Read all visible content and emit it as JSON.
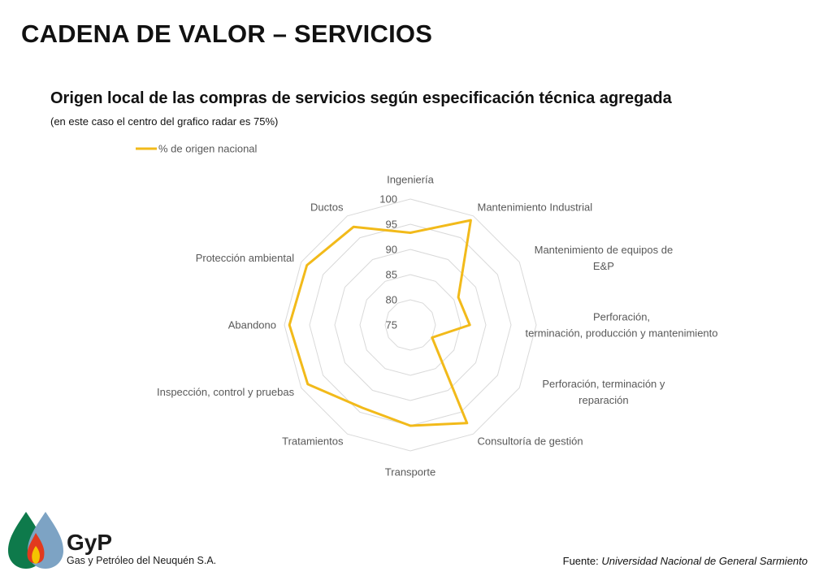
{
  "page": {
    "title": "CADENA DE VALOR – SERVICIOS",
    "subtitle": "Origen local de las compras de servicios según especificación técnica agregada",
    "note": "(en este caso el centro del grafico radar es 75%)",
    "source_label": "Fuente:",
    "source_name": "Universidad Nacional de General Sarmiento",
    "logo_text": "GyP",
    "logo_subtext": "Gas y Petróleo del Neuquén S.A."
  },
  "chart_data": {
    "type": "radar",
    "categories": [
      "Ingeniería",
      "Mantenimiento Industrial",
      "Mantenimiento de equipos de E&P",
      "Perforación, terminación, producción y mantenimiento",
      "Perforación, terminación y reparación",
      "Consultoría de gestión",
      "Transporte",
      "Tratamientos",
      "Inspección, control y pruebas",
      "Abandono",
      "Protección ambiental",
      "Ductos"
    ],
    "series": [
      {
        "name": "% de origen nacional",
        "color": "#F2BA1A",
        "values": [
          93.3,
          99.0,
          86.0,
          86.8,
          80.0,
          97.5,
          95.0,
          94.0,
          98.5,
          99.0,
          98.7,
          97.5
        ]
      }
    ],
    "rlim": [
      75,
      100
    ],
    "rticks": [
      75,
      80,
      85,
      90,
      95,
      100
    ],
    "grid": true,
    "legend": "top-left",
    "colors": {
      "grid": "#D9D9D9",
      "label": "#595959",
      "series": "#F2BA1A"
    }
  }
}
